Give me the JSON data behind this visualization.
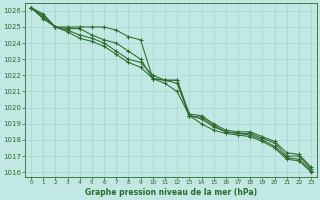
{
  "title": "Graphe pression niveau de la mer (hPa)",
  "hours": [
    0,
    1,
    2,
    3,
    4,
    5,
    6,
    7,
    8,
    9,
    10,
    11,
    12,
    13,
    14,
    15,
    16,
    17,
    18,
    19,
    20,
    21,
    22,
    23
  ],
  "ylim_low": 1015.7,
  "ylim_high": 1026.5,
  "yticks": [
    1016,
    1017,
    1018,
    1019,
    1020,
    1021,
    1022,
    1023,
    1024,
    1025,
    1026
  ],
  "line_color": "#2d6a2d",
  "bg_color": "#c2e8e4",
  "grid_color": "#a8d5d0",
  "line1": [
    1026.2,
    1025.8,
    1025.0,
    1025.0,
    1025.0,
    1025.0,
    1025.0,
    1024.8,
    1024.4,
    1024.2,
    1021.8,
    1021.7,
    1021.7,
    1019.6,
    1019.5,
    1019.0,
    1018.6,
    1018.5,
    1018.5,
    1018.2,
    1017.9,
    1017.2,
    1017.1,
    1016.3
  ],
  "line2": [
    1026.2,
    1025.7,
    1025.0,
    1024.9,
    1024.9,
    1024.5,
    1024.2,
    1024.0,
    1023.5,
    1023.0,
    1021.8,
    1021.7,
    1021.7,
    1019.5,
    1019.4,
    1018.9,
    1018.5,
    1018.4,
    1018.4,
    1018.1,
    1017.8,
    1017.0,
    1017.0,
    1016.2
  ],
  "line3": [
    1026.2,
    1025.6,
    1025.0,
    1024.8,
    1024.5,
    1024.3,
    1024.0,
    1023.5,
    1023.0,
    1022.8,
    1022.0,
    1021.7,
    1021.5,
    1019.5,
    1019.3,
    1018.8,
    1018.5,
    1018.4,
    1018.3,
    1018.0,
    1017.6,
    1016.9,
    1016.8,
    1016.1
  ],
  "line4": [
    1026.2,
    1025.5,
    1025.0,
    1024.7,
    1024.3,
    1024.1,
    1023.8,
    1023.3,
    1022.8,
    1022.5,
    1021.8,
    1021.5,
    1021.0,
    1019.5,
    1019.0,
    1018.6,
    1018.4,
    1018.3,
    1018.2,
    1017.9,
    1017.5,
    1016.8,
    1016.7,
    1016.0
  ]
}
